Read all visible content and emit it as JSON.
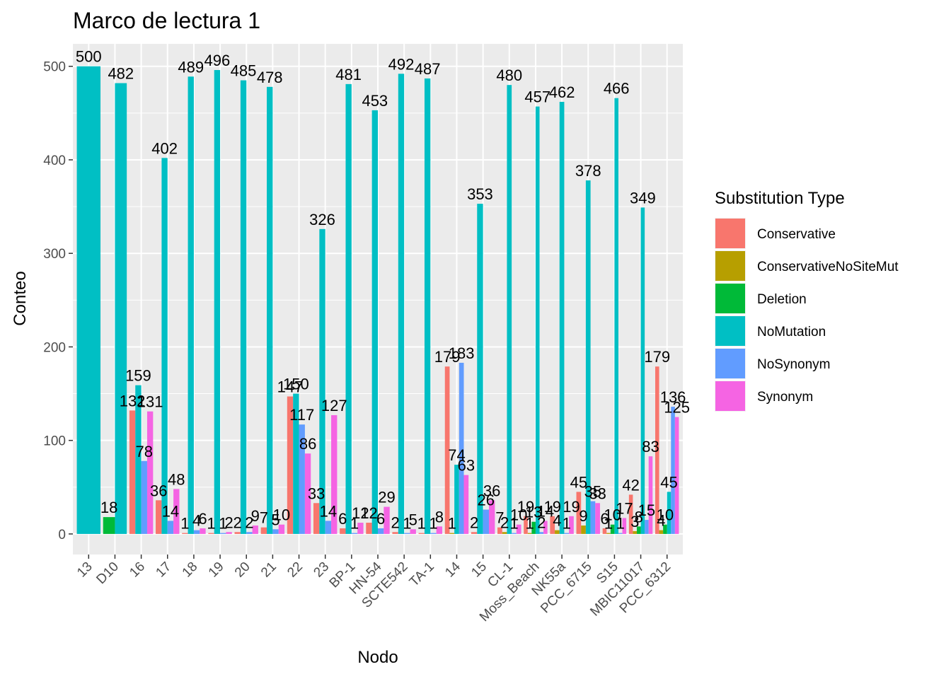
{
  "chart_data": {
    "type": "bar",
    "title": "Marco de lectura 1",
    "xlabel": "Nodo",
    "ylabel": "Conteo",
    "ylim": [
      -22,
      524
    ],
    "yticks": [
      0,
      100,
      200,
      300,
      400,
      500
    ],
    "grid": true,
    "legend_title": "Substitution Type",
    "legend_position": "right",
    "categories": [
      "13",
      "D10",
      "16",
      "17",
      "18",
      "19",
      "20",
      "21",
      "22",
      "23",
      "BP-1",
      "HN-54",
      "SCTE542",
      "TA-1",
      "14",
      "15",
      "CL-1",
      "Moss_Beach",
      "NK55a",
      "PCC_6715",
      "S15",
      "MBIC11017",
      "PCC_6312"
    ],
    "series": [
      {
        "name": "Conservative",
        "color": "#F8766D",
        "values": [
          null,
          null,
          132,
          36,
          1,
          1,
          2,
          7,
          147,
          33,
          6,
          12,
          2,
          1,
          179,
          2,
          7,
          19,
          19,
          45,
          6,
          42,
          179
        ]
      },
      {
        "name": "ConservativeNoSiteMut",
        "color": "#B79F00",
        "values": [
          null,
          null,
          null,
          null,
          null,
          null,
          null,
          null,
          null,
          null,
          null,
          null,
          null,
          null,
          1,
          null,
          2,
          1,
          4,
          9,
          1,
          3,
          4
        ]
      },
      {
        "name": "Deletion",
        "color": "#00BA38",
        "values": [
          null,
          18,
          null,
          null,
          null,
          null,
          null,
          null,
          null,
          null,
          null,
          null,
          null,
          null,
          null,
          null,
          null,
          13,
          null,
          null,
          10,
          8,
          10
        ]
      },
      {
        "name": "NoMutation",
        "color": "#00BFC4",
        "values": [
          500,
          482,
          159,
          402,
          489,
          496,
          485,
          478,
          150,
          326,
          481,
          453,
          492,
          487,
          74,
          353,
          480,
          457,
          462,
          378,
          466,
          349,
          45
        ]
      },
      {
        "name": "NoSynonym",
        "color": "#619CFF",
        "values": [
          null,
          null,
          78,
          14,
          4,
          1,
          2,
          5,
          117,
          14,
          1,
          6,
          1,
          1,
          183,
          26,
          1,
          2,
          1,
          35,
          1,
          15,
          136
        ]
      },
      {
        "name": "Synonym",
        "color": "#F564E3",
        "values": [
          null,
          null,
          131,
          48,
          6,
          2,
          9,
          10,
          86,
          127,
          12,
          29,
          5,
          8,
          63,
          36,
          10,
          14,
          19,
          33,
          17,
          83,
          125
        ]
      }
    ]
  }
}
